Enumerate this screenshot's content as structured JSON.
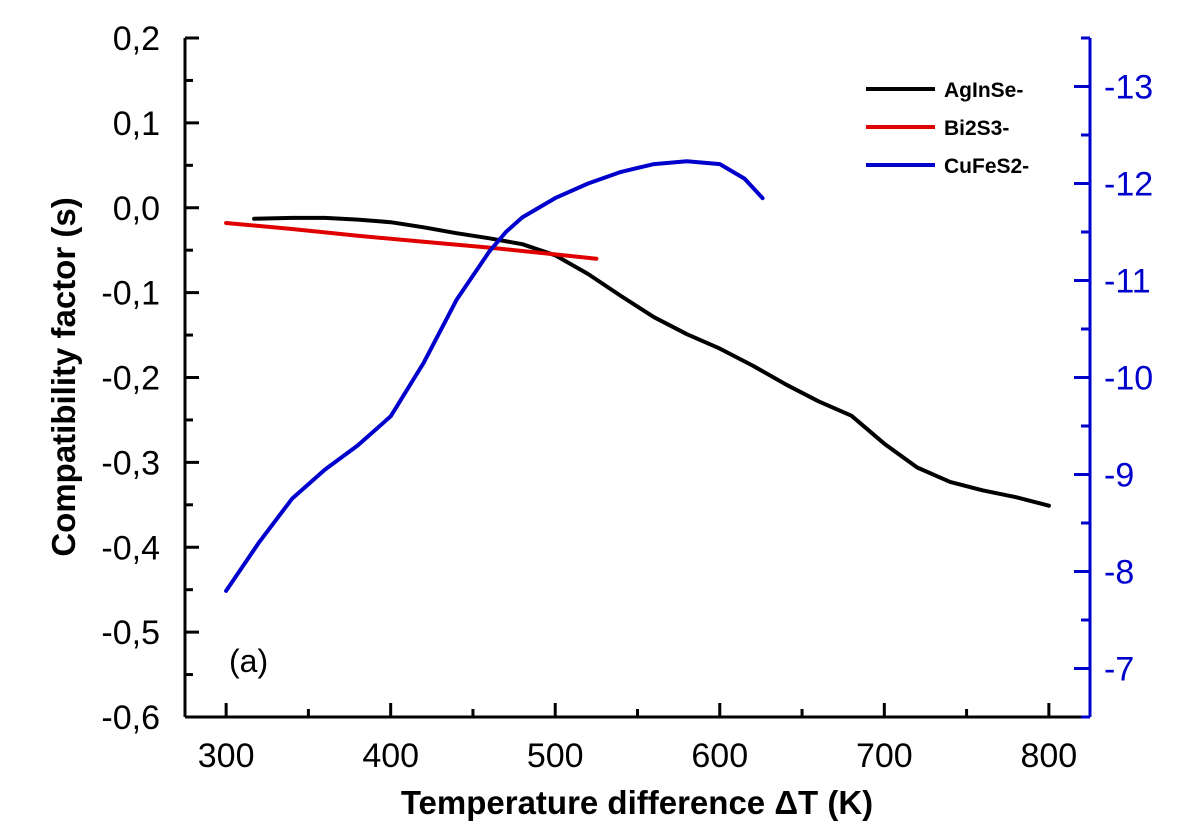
{
  "chart_data": {
    "type": "line",
    "xlabel": "Temperature difference ΔT (K)",
    "ylabel": "Compatibility factor (s)",
    "annotation": "(a)",
    "xlim": [
      275,
      825
    ],
    "x_ticks": [
      300,
      400,
      500,
      600,
      700,
      800
    ],
    "x_tick_labels": [
      "300",
      "400",
      "500",
      "600",
      "700",
      "800"
    ],
    "ylim_left": [
      -0.6,
      0.2
    ],
    "y_left_ticks": [
      -0.6,
      -0.5,
      -0.4,
      -0.3,
      -0.2,
      -0.1,
      0.0,
      0.1,
      0.2
    ],
    "y_left_tick_labels": [
      "-0,6",
      "-0,5",
      "-0,4",
      "-0,3",
      "-0,2",
      "-0,1",
      "0,0",
      "0,1",
      "0,2"
    ],
    "ylim_right": [
      -6.5,
      -13.5
    ],
    "y_right_ticks": [
      -7,
      -8,
      -9,
      -10,
      -11,
      -12,
      -13
    ],
    "y_right_tick_labels": [
      "-7",
      "-8",
      "-9",
      "-10",
      "-11",
      "-12",
      "-13"
    ],
    "legend_position": "top-right",
    "grid": false,
    "colors": {
      "right_axis": "#0000cc",
      "frame": "#000000"
    },
    "series": [
      {
        "name": "AgInSe-",
        "color": "#000000",
        "axis": "left",
        "x": [
          317,
          340,
          360,
          380,
          400,
          420,
          440,
          460,
          480,
          500,
          520,
          540,
          560,
          580,
          600,
          620,
          640,
          660,
          680,
          700,
          720,
          740,
          760,
          780,
          800
        ],
        "y": [
          -0.013,
          -0.012,
          -0.012,
          -0.014,
          -0.017,
          -0.023,
          -0.03,
          -0.036,
          -0.043,
          -0.056,
          -0.078,
          -0.104,
          -0.129,
          -0.149,
          -0.166,
          -0.186,
          -0.208,
          -0.228,
          -0.245,
          -0.278,
          -0.306,
          -0.323,
          -0.333,
          -0.341,
          -0.351
        ]
      },
      {
        "name": "Bi2S3-",
        "color": "#e00000",
        "axis": "left",
        "x": [
          300,
          340,
          380,
          420,
          460,
          500,
          525
        ],
        "y": [
          -0.018,
          -0.025,
          -0.033,
          -0.04,
          -0.047,
          -0.055,
          -0.06
        ]
      },
      {
        "name": "CuFeS2-",
        "color": "#0000cc",
        "axis": "right",
        "x": [
          300,
          320,
          340,
          360,
          380,
          400,
          420,
          440,
          460,
          470,
          480,
          500,
          520,
          540,
          560,
          580,
          600,
          615,
          626
        ],
        "y": [
          -7.8,
          -8.3,
          -8.75,
          -9.05,
          -9.3,
          -9.6,
          -10.15,
          -10.8,
          -11.3,
          -11.5,
          -11.65,
          -11.85,
          -12.0,
          -12.12,
          -12.2,
          -12.23,
          -12.2,
          -12.05,
          -11.85
        ]
      }
    ]
  }
}
